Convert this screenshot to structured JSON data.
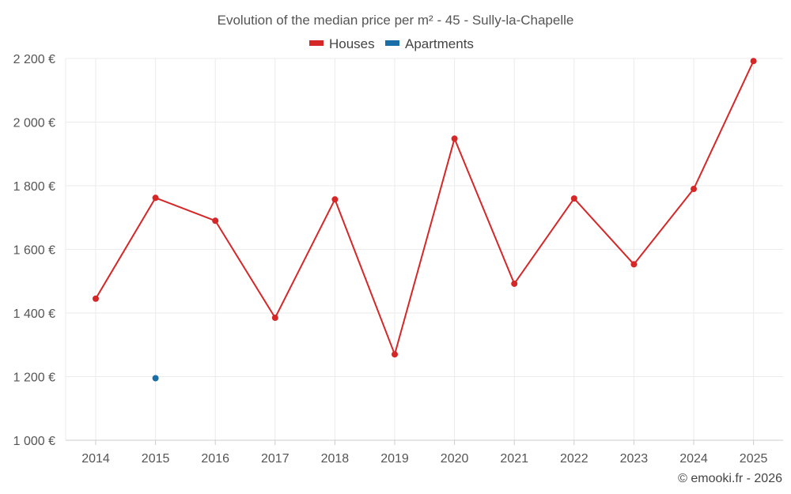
{
  "chart_data": {
    "type": "line",
    "title": "Evolution of the median price per m² - 45 - Sully-la-Chapelle",
    "categories": [
      "2014",
      "2015",
      "2016",
      "2017",
      "2018",
      "2019",
      "2020",
      "2021",
      "2022",
      "2023",
      "2024",
      "2025"
    ],
    "ylim": [
      1000,
      2200
    ],
    "yticks": [
      1000,
      1200,
      1400,
      1600,
      1800,
      2000,
      2200
    ],
    "ytick_labels": [
      "1 000 €",
      "1 200 €",
      "1 400 €",
      "1 600 €",
      "1 800 €",
      "2 000 €",
      "2 200 €"
    ],
    "series": [
      {
        "name": "Houses",
        "color": "#d62728",
        "values": [
          1445,
          1762,
          1690,
          1385,
          1757,
          1270,
          1948,
          1492,
          1760,
          1553,
          1790,
          2192
        ]
      },
      {
        "name": "Apartments",
        "color": "#1a6ea8",
        "values": [
          null,
          1195,
          null,
          null,
          null,
          null,
          null,
          null,
          null,
          null,
          null,
          null
        ]
      }
    ],
    "legend_position": "top-center",
    "grid": true
  },
  "credit": "© emooki.fr - 2026"
}
